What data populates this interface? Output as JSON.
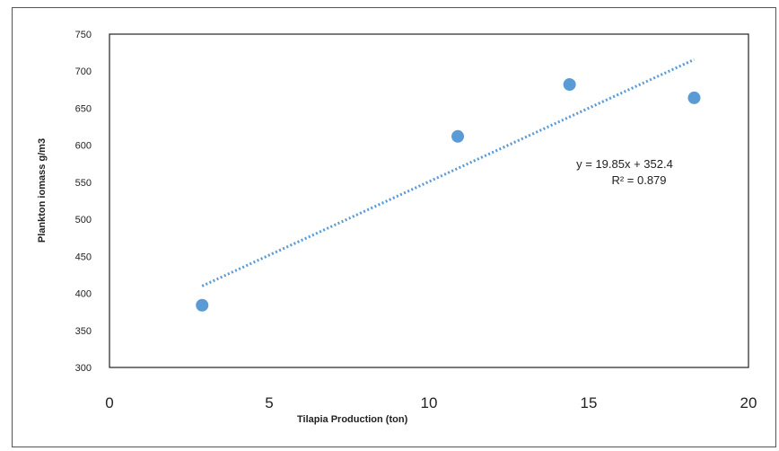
{
  "chart_data": {
    "type": "scatter",
    "title": "",
    "xlabel": "Tilapia Production (ton)",
    "ylabel": "Plankton iomass g/m3",
    "xlim": [
      0,
      20
    ],
    "ylim": [
      300,
      750
    ],
    "x_ticks": [
      "0",
      "5",
      "10",
      "15",
      "20"
    ],
    "y_ticks": [
      "300",
      "350",
      "400",
      "450",
      "500",
      "550",
      "600",
      "650",
      "700",
      "750"
    ],
    "grid": false,
    "legend": "none",
    "series": [
      {
        "x": [
          2.9,
          10.9,
          14.4,
          18.3
        ],
        "y": [
          384,
          612,
          682,
          664
        ],
        "color": "#5b9bd5",
        "marker": "circle"
      }
    ],
    "trendline": {
      "type": "linear",
      "slope": 19.85,
      "intercept": 352.4,
      "x_range": [
        2.9,
        18.3
      ],
      "color": "#5b9bd5",
      "style": "dotted",
      "equation_text": "y = 19.85x + 352.4",
      "r2_text": "R² = 0.879"
    }
  }
}
